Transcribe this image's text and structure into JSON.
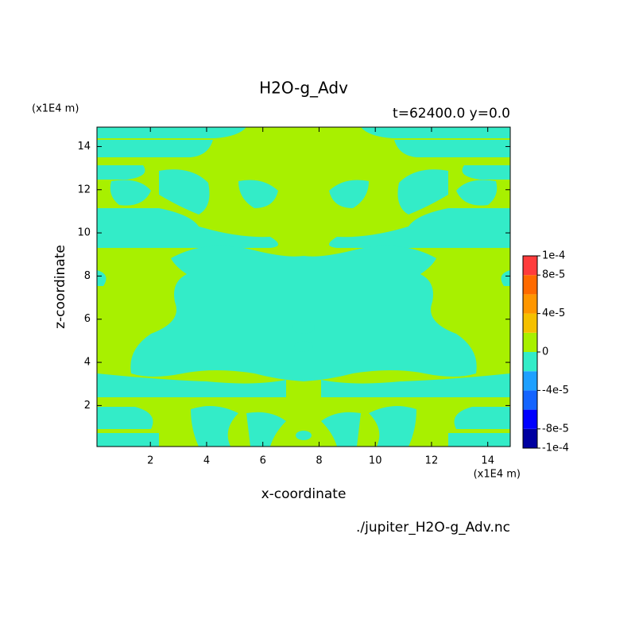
{
  "chart_data": {
    "type": "contour",
    "title": "H2O-g_Adv",
    "subtitle": "t=62400.0 y=0.0",
    "x_label": "x-coordinate",
    "y_label": "z-coordinate",
    "x_unit": "(x1E4 m)",
    "y_unit": "(x1E4 m)",
    "source": "./jupiter_H2O-g_Adv.nc",
    "xlim": [
      0.1,
      14.8
    ],
    "ylim": [
      0.1,
      14.9
    ],
    "xticks": [
      2,
      4,
      6,
      8,
      10,
      12,
      14
    ],
    "yticks": [
      2,
      4,
      6,
      8,
      10,
      12,
      14
    ],
    "levels": [
      -0.0001,
      -8e-05,
      -6e-05,
      -4e-05,
      -2e-05,
      0,
      2e-05,
      4e-05,
      6e-05,
      8e-05,
      0.0001
    ],
    "colors": [
      "#0000a0",
      "#0000ff",
      "#1464ff",
      "#1ea0ff",
      "#33ecc8",
      "#a8f000",
      "#f5c000",
      "#ff9600",
      "#ff6a00",
      "#ff3c3c"
    ],
    "colorbar_ticks": [
      {
        "value": 0.0001,
        "label": "1e-4"
      },
      {
        "value": 8e-05,
        "label": "8e-5"
      },
      {
        "value": 4e-05,
        "label": "4e-5"
      },
      {
        "value": 0,
        "label": "0"
      },
      {
        "value": -4e-05,
        "label": "-4e-5"
      },
      {
        "value": -8e-05,
        "label": "-8e-5"
      },
      {
        "value": -0.0001,
        "label": "-1e-4"
      }
    ]
  }
}
